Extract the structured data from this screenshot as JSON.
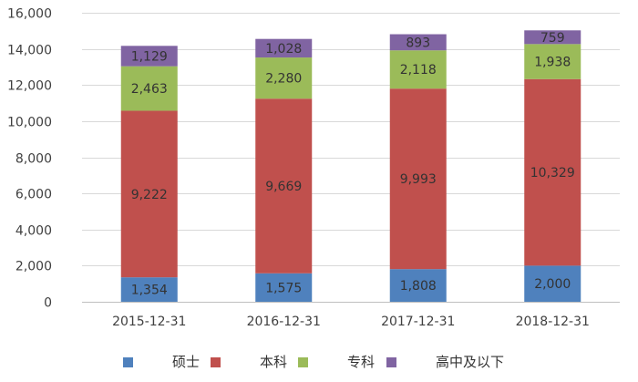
{
  "chart_data": {
    "type": "bar",
    "stacked": true,
    "categories": [
      "2015-12-31",
      "2016-12-31",
      "2017-12-31",
      "2018-12-31"
    ],
    "series": [
      {
        "name": "硕士",
        "values": [
          1354,
          1575,
          1808,
          2000
        ],
        "labels": [
          "1,354",
          "1,575",
          "1,808",
          "2,000"
        ],
        "color": "#4F81BD"
      },
      {
        "name": "本科",
        "values": [
          9222,
          9669,
          9993,
          10329
        ],
        "labels": [
          "9,222",
          "9,669",
          "9,993",
          "10,329"
        ],
        "color": "#C0504D"
      },
      {
        "name": "专科",
        "values": [
          2463,
          2280,
          2118,
          1938
        ],
        "labels": [
          "2,463",
          "2,280",
          "2,118",
          "1,938"
        ],
        "color": "#9BBB59"
      },
      {
        "name": "高中及以下",
        "values": [
          1129,
          1028,
          893,
          759
        ],
        "labels": [
          "1,129",
          "1,028",
          "893",
          "759"
        ],
        "color": "#8064A2"
      }
    ],
    "ylim": [
      0,
      16000
    ],
    "yticks": [
      0,
      2000,
      4000,
      6000,
      8000,
      10000,
      12000,
      14000,
      16000
    ],
    "ytick_labels": [
      "0",
      "2,000",
      "4,000",
      "6,000",
      "8,000",
      "10,000",
      "12,000",
      "14,000",
      "16,000"
    ],
    "grid": true,
    "legend_position": "bottom",
    "gridline_color": "#D9D9D9",
    "axis_color": "#BFBFBF"
  }
}
